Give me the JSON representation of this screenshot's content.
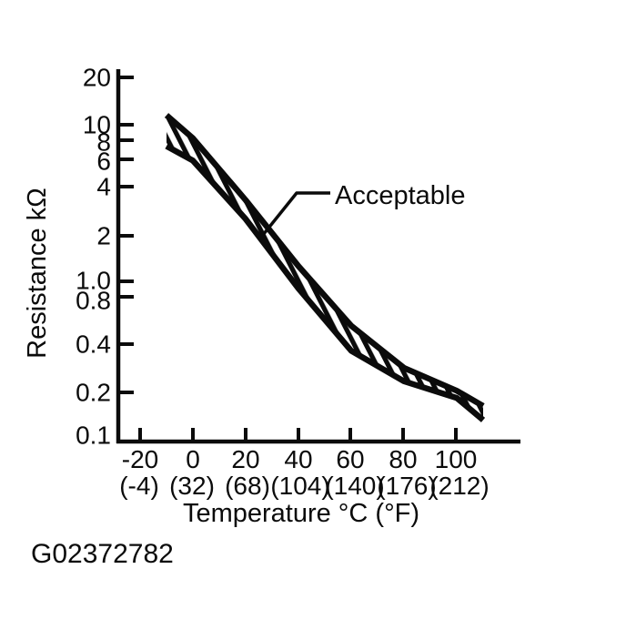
{
  "page": {
    "background": "#ffffff",
    "ink_color": "#0b0b0b"
  },
  "figure": {
    "code": "G02372782"
  },
  "chart_data": {
    "type": "area",
    "subtype": "tolerance-band-on-log-scale",
    "title": "",
    "xlabel": "Temperature °C (°F)",
    "ylabel": "Resistance kΩ",
    "y_scale": "log",
    "grid": "off",
    "xlim": [
      -30,
      122
    ],
    "ylim": [
      0.1,
      22
    ],
    "x_tick_values": [
      -20,
      0,
      20,
      40,
      60,
      80,
      100
    ],
    "x_ticks_c": [
      "-20",
      "0",
      "20",
      "40",
      "60",
      "80",
      "100"
    ],
    "x_ticks_f": [
      "(-4)",
      "(32)",
      "(68)",
      "(104)",
      "(140)",
      "(176)",
      "(212)"
    ],
    "y_tick_values": [
      20,
      10,
      8,
      6,
      4,
      2,
      1.0,
      0.8,
      0.4,
      0.2,
      0.1
    ],
    "y_ticks": [
      "20",
      "10",
      "8",
      "6",
      "4",
      "2",
      "1.0",
      "0.8",
      "0.4",
      "0.2",
      "0.1"
    ],
    "band_label": "Acceptable",
    "series": [
      {
        "name": "acceptable-upper-limit",
        "x": [
          -10,
          0,
          20,
          40,
          60,
          80,
          100,
          110
        ],
        "values": [
          11.5,
          8.2,
          3.3,
          1.25,
          0.52,
          0.28,
          0.2,
          0.16
        ]
      },
      {
        "name": "acceptable-lower-limit",
        "x": [
          -10,
          0,
          20,
          40,
          60,
          80,
          100,
          110
        ],
        "values": [
          7.3,
          5.9,
          2.5,
          0.9,
          0.36,
          0.23,
          0.18,
          0.13
        ]
      }
    ]
  }
}
